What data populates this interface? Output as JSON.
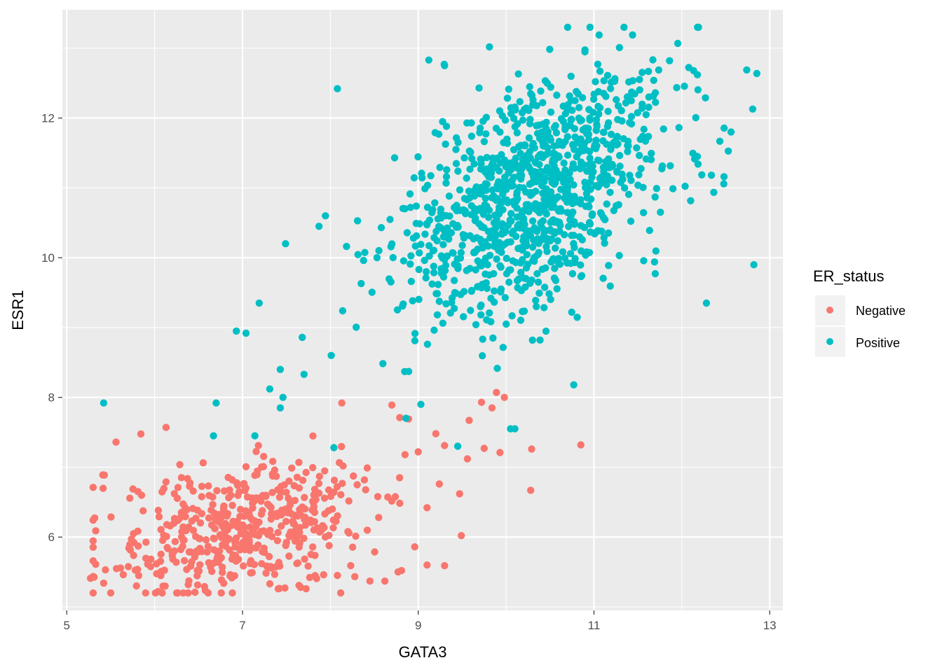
{
  "chart_data": {
    "type": "scatter",
    "title": "",
    "xlabel": "GATA3",
    "ylabel": "ESR1",
    "xlim": [
      4.95,
      13.15
    ],
    "ylim": [
      4.95,
      13.55
    ],
    "x_ticks": [
      5,
      7,
      9,
      11,
      13
    ],
    "y_ticks": [
      6,
      8,
      10,
      12
    ],
    "x_tick_labels": [
      "5",
      "7",
      "9",
      "11",
      "13"
    ],
    "y_tick_labels": [
      "6",
      "8",
      "10",
      "12"
    ],
    "grid": true,
    "panel_background": "#ebebeb",
    "legend": {
      "title": "ER_status",
      "position": "right",
      "entries": [
        "Negative",
        "Positive"
      ]
    },
    "series": [
      {
        "name": "Negative",
        "color": "#f8766d",
        "count": 520,
        "x_center": 7.0,
        "x_sd": 0.75,
        "y_center": 6.1,
        "y_sd": 0.5,
        "x_range": [
          5.3,
          10.9
        ],
        "y_range": [
          5.2,
          8.1
        ],
        "points": [
          [
            5.27,
            5.41
          ],
          [
            5.33,
            6.09
          ],
          [
            5.41,
            6.89
          ],
          [
            5.42,
            5.34
          ],
          [
            5.56,
            7.36
          ],
          [
            5.44,
            5.53
          ],
          [
            6.13,
            7.57
          ],
          [
            6.04,
            5.22
          ],
          [
            6.13,
            6.79
          ],
          [
            8.13,
            7.92
          ],
          [
            9.89,
            8.07
          ],
          [
            9.98,
            8.0
          ],
          [
            10.85,
            7.32
          ],
          [
            10.29,
            7.26
          ],
          [
            10.28,
            6.67
          ],
          [
            9.49,
            6.02
          ],
          [
            9.84,
            7.85
          ],
          [
            9.72,
            7.93
          ],
          [
            9.58,
            7.67
          ],
          [
            9.56,
            7.12
          ],
          [
            9.75,
            7.27
          ],
          [
            9.93,
            7.21
          ],
          [
            8.79,
            7.71
          ],
          [
            8.89,
            7.69
          ],
          [
            8.7,
            7.89
          ],
          [
            8.85,
            7.18
          ],
          [
            8.08,
            5.45
          ],
          [
            8.77,
            5.5
          ],
          [
            8.81,
            5.52
          ],
          [
            9.3,
            5.59
          ],
          [
            9.1,
            5.6
          ],
          [
            9.47,
            6.62
          ],
          [
            9.1,
            6.42
          ],
          [
            9.24,
            6.76
          ],
          [
            9.3,
            7.31
          ],
          [
            9.2,
            7.48
          ],
          [
            8.45,
            5.37
          ],
          [
            8.62,
            5.37
          ],
          [
            9.0,
            7.22
          ],
          [
            8.96,
            5.86
          ],
          [
            8.55,
            6.28
          ],
          [
            8.42,
            6.99
          ]
        ]
      },
      {
        "name": "Positive",
        "color": "#00bfc4",
        "count": 1100,
        "x_center": 10.3,
        "x_sd": 0.75,
        "y_center": 10.9,
        "y_sd": 0.85,
        "x_range": [
          5.4,
          12.9
        ],
        "y_range": [
          7.3,
          13.3
        ],
        "points": [
          [
            5.42,
            7.92
          ],
          [
            6.7,
            7.92
          ],
          [
            6.67,
            7.45
          ],
          [
            7.14,
            7.45
          ],
          [
            6.93,
            8.95
          ],
          [
            7.04,
            8.92
          ],
          [
            7.19,
            9.35
          ],
          [
            7.49,
            10.2
          ],
          [
            7.31,
            8.12
          ],
          [
            7.43,
            8.4
          ],
          [
            7.43,
            7.85
          ],
          [
            7.46,
            8.0
          ],
          [
            7.68,
            8.86
          ],
          [
            7.7,
            8.33
          ],
          [
            7.87,
            10.45
          ],
          [
            8.14,
            9.24
          ],
          [
            8.08,
            12.42
          ],
          [
            8.01,
            8.6
          ],
          [
            8.04,
            7.28
          ],
          [
            10.7,
            13.3
          ],
          [
            9.81,
            13.02
          ],
          [
            11.29,
            13.01
          ],
          [
            12.82,
            9.9
          ],
          [
            12.28,
            9.35
          ],
          [
            12.56,
            11.8
          ],
          [
            12.48,
            11.16
          ],
          [
            9.12,
            12.83
          ],
          [
            9.3,
            12.75
          ],
          [
            11.86,
            12.82
          ],
          [
            9.45,
            7.3
          ],
          [
            8.86,
            7.7
          ],
          [
            9.03,
            7.9
          ],
          [
            10.05,
            7.55
          ],
          [
            10.1,
            7.55
          ],
          [
            10.77,
            8.18
          ],
          [
            9.85,
            8.85
          ],
          [
            10.3,
            8.82
          ]
        ]
      }
    ]
  }
}
